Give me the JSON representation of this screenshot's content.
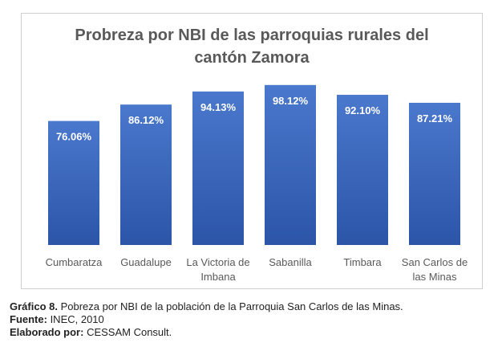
{
  "chart_data": {
    "type": "bar",
    "title_lines": [
      "Probreza por NBI de las parroquias rurales del",
      "cantón Zamora"
    ],
    "categories": [
      "Cumbaratza",
      "Guadalupe",
      "La Victoria de\nImbana",
      "Sabanilla",
      "Timbara",
      "San Carlos de\nlas Minas"
    ],
    "values": [
      76.06,
      86.12,
      94.13,
      98.12,
      92.1,
      87.21
    ],
    "value_labels": [
      "76.06%",
      "86.12%",
      "94.13%",
      "98.12%",
      "92.10%",
      "87.21%"
    ],
    "xlabel": "",
    "ylabel": "",
    "ylim": [
      0,
      100
    ],
    "colors": {
      "bar_top": "#4a78cc",
      "bar_bottom": "#2c55a8",
      "label": "#ffffff",
      "tick": "#595959"
    }
  },
  "caption": {
    "figure_label": "Gráfico 8.",
    "figure_text": " Pobreza por NBI de la población de la Parroquia San Carlos de las Minas.",
    "source_label": "Fuente:",
    "source_text": " INEC, 2010",
    "author_label": "Elaborado por:",
    "author_text": " CESSAM Consult."
  }
}
